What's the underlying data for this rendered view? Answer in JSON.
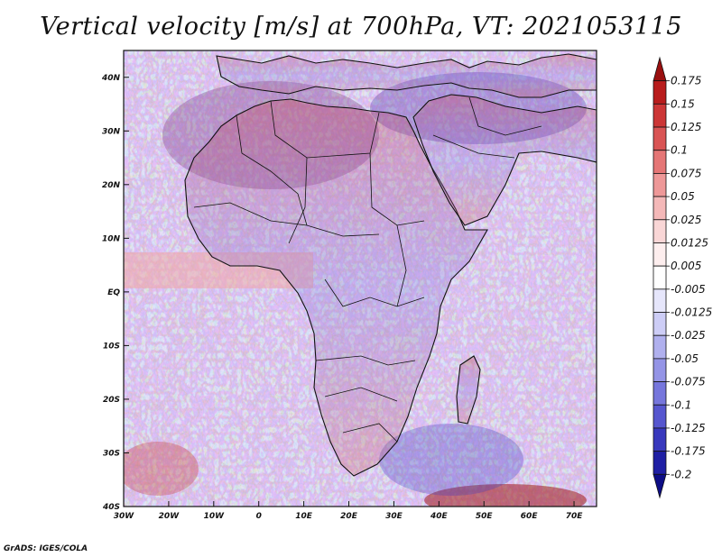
{
  "title": "Vertical velocity [m/s] at 700hPa, VT: 2021053115",
  "credit": "GrADS: IGES/COLA",
  "map": {
    "lon_range": [
      -30,
      75
    ],
    "lat_range": [
      -40,
      45
    ],
    "lon_ticks": [
      "30W",
      "20W",
      "10W",
      "0",
      "10E",
      "20E",
      "30E",
      "40E",
      "50E",
      "60E",
      "70E"
    ],
    "lat_ticks": [
      "40N",
      "30N",
      "20N",
      "10N",
      "EQ",
      "10S",
      "20S",
      "30S",
      "40S"
    ]
  },
  "colorbar": {
    "labels": [
      "0.175",
      "0.15",
      "0.125",
      "0.1",
      "0.075",
      "0.05",
      "0.025",
      "0.0125",
      "0.005",
      "-0.005",
      "-0.0125",
      "-0.025",
      "-0.05",
      "-0.075",
      "-0.1",
      "-0.125",
      "-0.175",
      "-0.2"
    ],
    "colors": [
      "#9a1010",
      "#b81c1c",
      "#cc3636",
      "#d95454",
      "#e57676",
      "#ee9898",
      "#f4b8b8",
      "#f9d6d6",
      "#fdeeee",
      "#ffffff",
      "#e6e6fb",
      "#cdcdf6",
      "#b0b0ee",
      "#9494e6",
      "#7676dc",
      "#5656cf",
      "#3838bd",
      "#1f1fa4",
      "#0d0d86"
    ]
  }
}
